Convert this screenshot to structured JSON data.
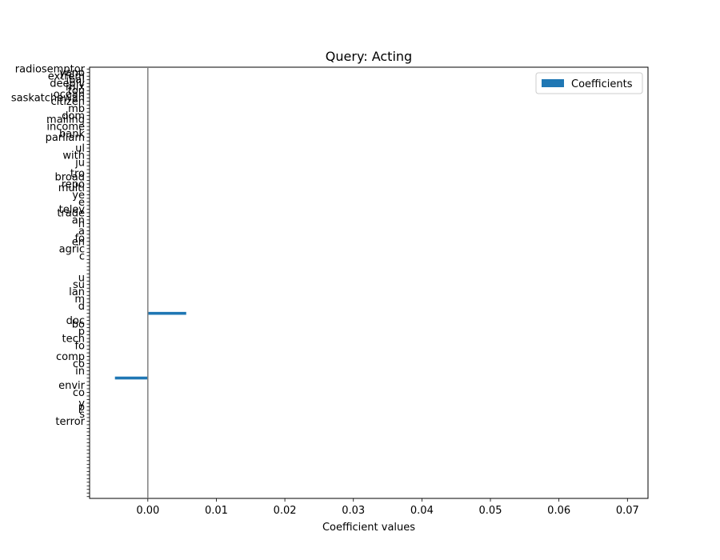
{
  "chart_data": {
    "type": "bar",
    "orientation": "horizontal",
    "title": "Query: Acting",
    "xlabel": "Coefficient values",
    "ylabel": "",
    "xlim": [
      -0.0085,
      0.073
    ],
    "x_ticks": [
      0.0,
      0.01,
      0.02,
      0.03,
      0.04,
      0.05,
      0.06,
      0.07
    ],
    "x_tick_labels": [
      "0.00",
      "0.01",
      "0.02",
      "0.03",
      "0.04",
      "0.05",
      "0.06",
      "0.07"
    ],
    "zero_line": true,
    "grid": false,
    "legend": {
      "position": "top-right",
      "entries": [
        "Coefficients"
      ]
    },
    "series": [
      {
        "name": "Coefficients",
        "color": "#1f77b4",
        "bars": [
          {
            "index": 68,
            "value": 0.0056
          },
          {
            "index": 86,
            "value": -0.0048
          }
        ]
      }
    ],
    "category_count": 120,
    "categories_visible": [
      {
        "index": 0,
        "label": "radiosemptor"
      },
      {
        "index": 1,
        "label": "yano"
      },
      {
        "index": 2,
        "label": "extrem"
      },
      {
        "index": 3,
        "label": "ibal"
      },
      {
        "index": 4,
        "label": "deeply"
      },
      {
        "index": 5,
        "label": "mix"
      },
      {
        "index": 6,
        "label": "tou"
      },
      {
        "index": 7,
        "label": "ocean"
      },
      {
        "index": 8,
        "label": "saskatchewan"
      },
      {
        "index": 9,
        "label": "citizen"
      },
      {
        "index": 11,
        "label": "mb"
      },
      {
        "index": 13,
        "label": "dom"
      },
      {
        "index": 14,
        "label": "mailing"
      },
      {
        "index": 16,
        "label": "income"
      },
      {
        "index": 18,
        "label": "bank"
      },
      {
        "index": 19,
        "label": "parliam"
      },
      {
        "index": 22,
        "label": "ul"
      },
      {
        "index": 24,
        "label": "with"
      },
      {
        "index": 26,
        "label": "ju"
      },
      {
        "index": 29,
        "label": "tro"
      },
      {
        "index": 30,
        "label": "broad"
      },
      {
        "index": 32,
        "label": "repo"
      },
      {
        "index": 33,
        "label": "multi"
      },
      {
        "index": 35,
        "label": "ye"
      },
      {
        "index": 37,
        "label": "e"
      },
      {
        "index": 39,
        "label": "telev"
      },
      {
        "index": 40,
        "label": "trade"
      },
      {
        "index": 42,
        "label": "an"
      },
      {
        "index": 43,
        "label": "h"
      },
      {
        "index": 45,
        "label": "a"
      },
      {
        "index": 47,
        "label": "fo"
      },
      {
        "index": 48,
        "label": "en"
      },
      {
        "index": 50,
        "label": "agric"
      },
      {
        "index": 52,
        "label": "c"
      },
      {
        "index": 58,
        "label": "u"
      },
      {
        "index": 60,
        "label": "su"
      },
      {
        "index": 62,
        "label": "lan"
      },
      {
        "index": 64,
        "label": "m"
      },
      {
        "index": 66,
        "label": "d"
      },
      {
        "index": 70,
        "label": "doc"
      },
      {
        "index": 71,
        "label": "bo"
      },
      {
        "index": 73,
        "label": "p"
      },
      {
        "index": 75,
        "label": "tech"
      },
      {
        "index": 77,
        "label": "fo"
      },
      {
        "index": 80,
        "label": "comp"
      },
      {
        "index": 82,
        "label": "co"
      },
      {
        "index": 84,
        "label": "in"
      },
      {
        "index": 88,
        "label": "envir"
      },
      {
        "index": 90,
        "label": "co"
      },
      {
        "index": 93,
        "label": "y"
      },
      {
        "index": 94,
        "label": "p"
      },
      {
        "index": 96,
        "label": "s"
      },
      {
        "index": 98,
        "label": "terror"
      }
    ]
  }
}
